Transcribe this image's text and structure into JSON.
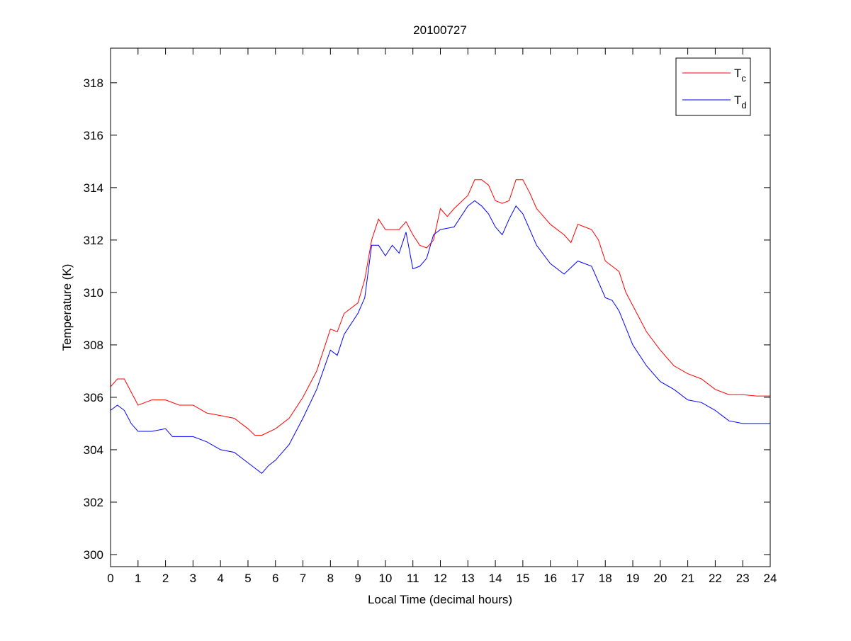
{
  "chart_data": {
    "type": "line",
    "title": "20100727",
    "xlabel": "Local Time (decimal hours)",
    "ylabel": "Temperature (K)",
    "xlim": [
      0,
      24
    ],
    "ylim": [
      299.54,
      319.32
    ],
    "xticks": [
      0,
      1,
      2,
      3,
      4,
      5,
      6,
      7,
      8,
      9,
      10,
      11,
      12,
      13,
      14,
      15,
      16,
      17,
      18,
      19,
      20,
      21,
      22,
      23,
      24
    ],
    "yticks": [
      300,
      302,
      304,
      306,
      308,
      310,
      312,
      314,
      316,
      318
    ],
    "grid": false,
    "legend_position": "top-right",
    "series": [
      {
        "name": "T",
        "subscript": "c",
        "color": "#ff0000",
        "x": [
          0,
          0.25,
          0.5,
          0.75,
          1,
          1.25,
          1.5,
          2,
          2.5,
          3,
          3.5,
          4,
          4.5,
          5,
          5.25,
          5.5,
          6,
          6.5,
          7,
          7.5,
          8,
          8.25,
          8.5,
          9,
          9.25,
          9.5,
          9.75,
          10,
          10.5,
          10.75,
          11,
          11.25,
          11.5,
          11.75,
          12,
          12.25,
          12.5,
          13,
          13.25,
          13.5,
          13.75,
          14,
          14.25,
          14.5,
          14.75,
          15,
          15.25,
          15.5,
          16,
          16.5,
          16.75,
          17,
          17.25,
          17.5,
          17.75,
          18,
          18.5,
          18.75,
          19,
          19.5,
          20,
          20.5,
          21,
          21.5,
          22,
          22.5,
          23,
          23.5,
          24
        ],
        "y": [
          306.4,
          306.7,
          306.7,
          306.2,
          305.7,
          305.8,
          305.9,
          305.9,
          305.7,
          305.7,
          305.4,
          305.3,
          305.2,
          304.8,
          304.55,
          304.55,
          304.8,
          305.2,
          306.0,
          307.0,
          308.6,
          308.5,
          309.2,
          309.6,
          310.5,
          312.0,
          312.8,
          312.4,
          312.4,
          312.7,
          312.2,
          311.8,
          311.7,
          312.0,
          313.2,
          312.9,
          313.2,
          313.7,
          314.3,
          314.3,
          314.1,
          313.5,
          313.4,
          313.5,
          314.3,
          314.3,
          313.8,
          313.2,
          312.6,
          312.2,
          311.9,
          312.6,
          312.5,
          312.4,
          312.0,
          311.2,
          310.8,
          310.0,
          309.5,
          308.5,
          307.8,
          307.2,
          306.9,
          306.7,
          306.3,
          306.1,
          306.1,
          306.05,
          306.05
        ]
      },
      {
        "name": "T",
        "subscript": "d",
        "color": "#0000ff",
        "x": [
          0,
          0.25,
          0.5,
          0.75,
          1,
          1.5,
          2,
          2.25,
          2.5,
          3,
          3.5,
          4,
          4.5,
          5,
          5.25,
          5.5,
          5.75,
          6,
          6.5,
          7,
          7.5,
          8,
          8.25,
          8.5,
          9,
          9.25,
          9.5,
          9.75,
          10,
          10.25,
          10.5,
          10.75,
          11,
          11.25,
          11.5,
          11.75,
          12,
          12.5,
          13,
          13.25,
          13.5,
          13.75,
          14,
          14.25,
          14.5,
          14.75,
          15,
          15.25,
          15.5,
          16,
          16.5,
          17,
          17.5,
          18,
          18.25,
          18.5,
          19,
          19.5,
          20,
          20.5,
          21,
          21.5,
          22,
          22.5,
          23,
          24
        ],
        "y": [
          305.5,
          305.7,
          305.5,
          305.0,
          304.7,
          304.7,
          304.8,
          304.5,
          304.5,
          304.5,
          304.3,
          304.0,
          303.9,
          303.5,
          303.3,
          303.1,
          303.4,
          303.6,
          304.2,
          305.2,
          306.3,
          307.8,
          307.6,
          308.4,
          309.2,
          309.8,
          311.8,
          311.8,
          311.4,
          311.8,
          311.5,
          312.3,
          310.9,
          311.0,
          311.3,
          312.2,
          312.4,
          312.5,
          313.3,
          313.5,
          313.3,
          313.0,
          312.5,
          312.2,
          312.8,
          313.3,
          313.0,
          312.4,
          311.8,
          311.1,
          310.7,
          311.2,
          311.0,
          309.8,
          309.7,
          309.3,
          308.0,
          307.2,
          306.6,
          306.3,
          305.9,
          305.8,
          305.5,
          305.1,
          305.0,
          305.0
        ]
      }
    ]
  }
}
